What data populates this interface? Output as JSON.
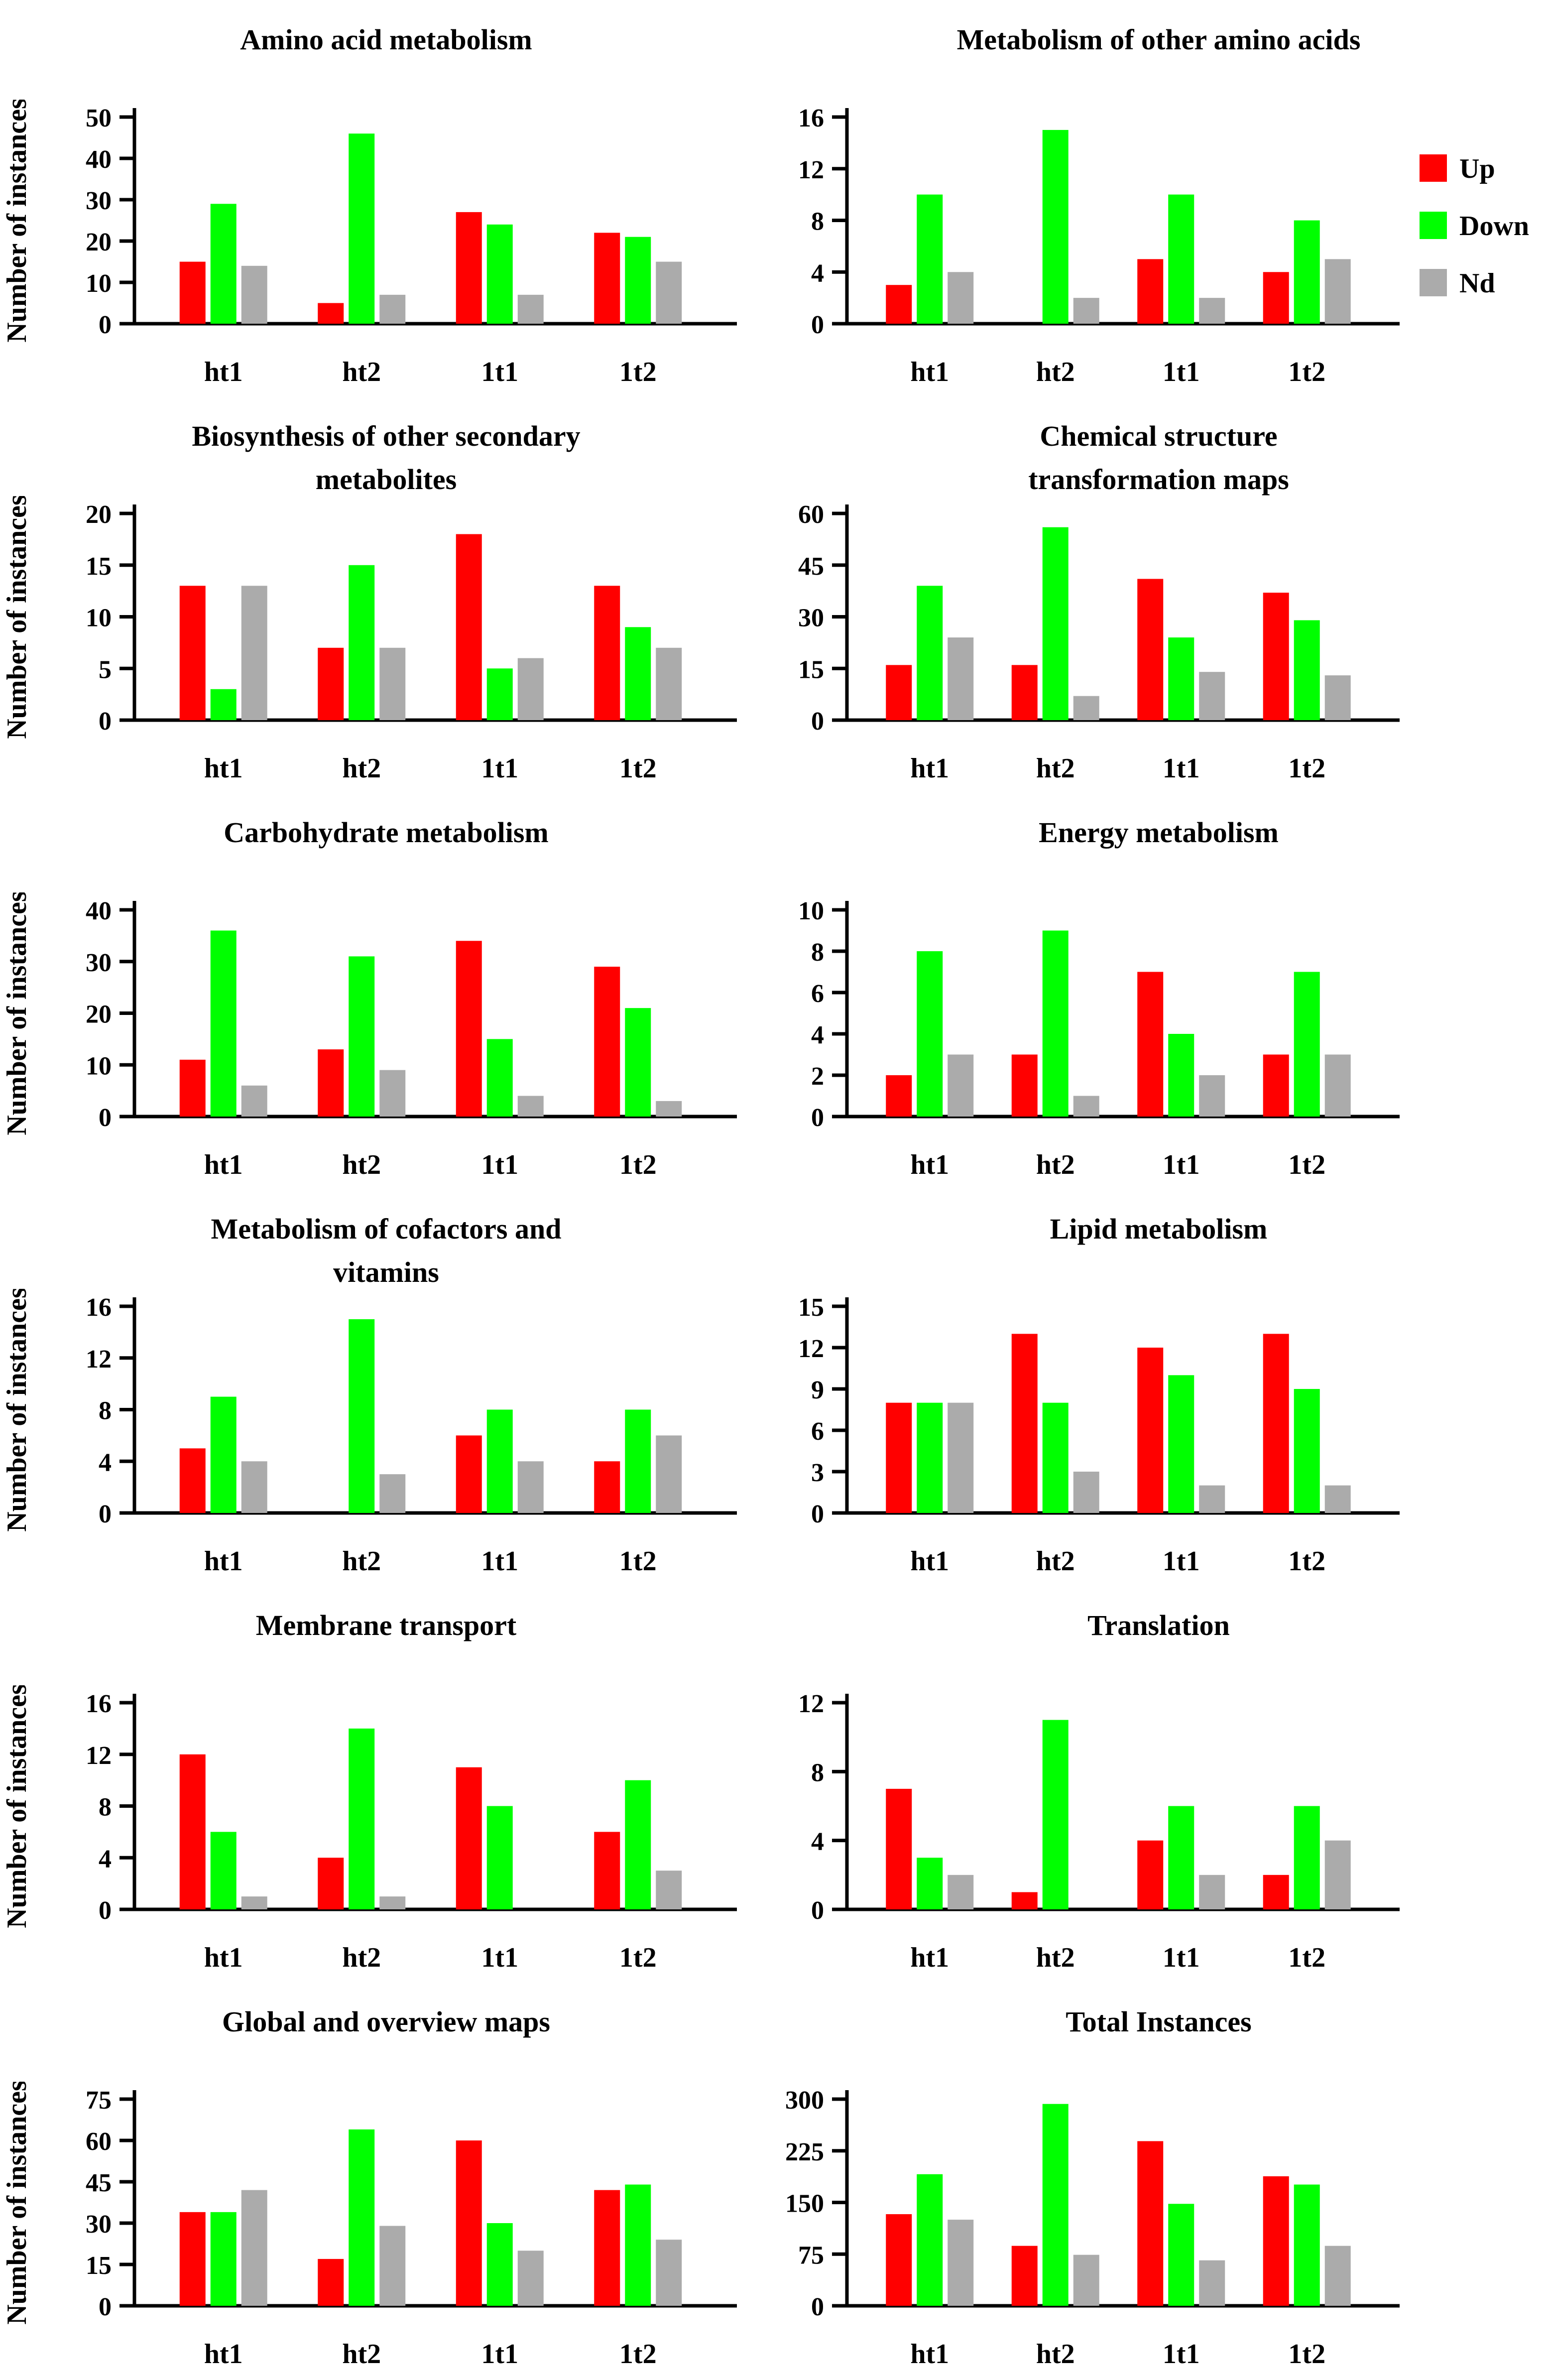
{
  "figure": {
    "ylabel": "Number of instances",
    "categories": [
      "ht1",
      "ht2",
      "1t1",
      "1t2"
    ],
    "colors": {
      "up": "#ff0000",
      "down": "#00ff00",
      "nd": "#ababab",
      "axis": "#000000",
      "background": "#ffffff"
    },
    "legend": {
      "items": [
        {
          "label": "Up",
          "key": "up"
        },
        {
          "label": "Down",
          "key": "down"
        },
        {
          "label": "Nd",
          "key": "nd"
        }
      ]
    }
  },
  "chart_data": [
    {
      "type": "bar",
      "title": "Amino acid metabolism",
      "title_lines": [
        "Amino acid metabolism"
      ],
      "ylabel": "Number of instances",
      "xlabel": "",
      "categories": [
        "ht1",
        "ht2",
        "1t1",
        "1t2"
      ],
      "yticks": [
        0,
        10,
        20,
        30,
        40,
        50
      ],
      "ylim": [
        0,
        50
      ],
      "grid": false,
      "show_legend": false,
      "series": [
        {
          "name": "Up",
          "color": "up",
          "values": [
            15,
            5,
            27,
            22
          ]
        },
        {
          "name": "Down",
          "color": "down",
          "values": [
            29,
            46,
            24,
            21
          ]
        },
        {
          "name": "Nd",
          "color": "nd",
          "values": [
            14,
            7,
            7,
            15
          ]
        }
      ]
    },
    {
      "type": "bar",
      "title": "Metabolism of other amino acids",
      "title_lines": [
        "Metabolism of other amino acids"
      ],
      "ylabel": "",
      "xlabel": "",
      "categories": [
        "ht1",
        "ht2",
        "1t1",
        "1t2"
      ],
      "yticks": [
        0,
        4,
        8,
        12,
        16
      ],
      "ylim": [
        0,
        16
      ],
      "grid": false,
      "show_legend": true,
      "legend_position": "right",
      "series": [
        {
          "name": "Up",
          "color": "up",
          "values": [
            3,
            0,
            5,
            4
          ]
        },
        {
          "name": "Down",
          "color": "down",
          "values": [
            10,
            15,
            10,
            8
          ]
        },
        {
          "name": "Nd",
          "color": "nd",
          "values": [
            4,
            2,
            2,
            5
          ]
        }
      ]
    },
    {
      "type": "bar",
      "title": "Biosynthesis of other secondary metabolites",
      "title_lines": [
        "Biosynthesis of other secondary",
        "metabolites"
      ],
      "ylabel": "Number of instances",
      "xlabel": "",
      "categories": [
        "ht1",
        "ht2",
        "1t1",
        "1t2"
      ],
      "yticks": [
        0,
        5,
        10,
        15,
        20
      ],
      "ylim": [
        0,
        20
      ],
      "grid": false,
      "show_legend": false,
      "series": [
        {
          "name": "Up",
          "color": "up",
          "values": [
            13,
            7,
            18,
            13
          ]
        },
        {
          "name": "Down",
          "color": "down",
          "values": [
            3,
            15,
            5,
            9
          ]
        },
        {
          "name": "Nd",
          "color": "nd",
          "values": [
            13,
            7,
            6,
            7
          ]
        }
      ]
    },
    {
      "type": "bar",
      "title": "Chemical structure transformation maps",
      "title_lines": [
        "Chemical structure",
        "transformation maps"
      ],
      "ylabel": "",
      "xlabel": "",
      "categories": [
        "ht1",
        "ht2",
        "1t1",
        "1t2"
      ],
      "yticks": [
        0,
        15,
        30,
        45,
        60
      ],
      "ylim": [
        0,
        60
      ],
      "grid": false,
      "show_legend": false,
      "series": [
        {
          "name": "Up",
          "color": "up",
          "values": [
            16,
            16,
            41,
            37
          ]
        },
        {
          "name": "Down",
          "color": "down",
          "values": [
            39,
            56,
            24,
            29
          ]
        },
        {
          "name": "Nd",
          "color": "nd",
          "values": [
            24,
            7,
            14,
            13
          ]
        }
      ]
    },
    {
      "type": "bar",
      "title": "Carbohydrate metabolism",
      "title_lines": [
        "Carbohydrate metabolism"
      ],
      "ylabel": "Number of instances",
      "xlabel": "",
      "categories": [
        "ht1",
        "ht2",
        "1t1",
        "1t2"
      ],
      "yticks": [
        0,
        10,
        20,
        30,
        40
      ],
      "ylim": [
        0,
        40
      ],
      "grid": false,
      "show_legend": false,
      "series": [
        {
          "name": "Up",
          "color": "up",
          "values": [
            11,
            13,
            34,
            29
          ]
        },
        {
          "name": "Down",
          "color": "down",
          "values": [
            36,
            31,
            15,
            21
          ]
        },
        {
          "name": "Nd",
          "color": "nd",
          "values": [
            6,
            9,
            4,
            3
          ]
        }
      ]
    },
    {
      "type": "bar",
      "title": "Energy metabolism",
      "title_lines": [
        "Energy metabolism"
      ],
      "ylabel": "",
      "xlabel": "",
      "categories": [
        "ht1",
        "ht2",
        "1t1",
        "1t2"
      ],
      "yticks": [
        0,
        2,
        4,
        6,
        8,
        10
      ],
      "ylim": [
        0,
        10
      ],
      "grid": false,
      "show_legend": false,
      "series": [
        {
          "name": "Up",
          "color": "up",
          "values": [
            2,
            3,
            7,
            3
          ]
        },
        {
          "name": "Down",
          "color": "down",
          "values": [
            8,
            9,
            4,
            7
          ]
        },
        {
          "name": "Nd",
          "color": "nd",
          "values": [
            3,
            1,
            2,
            3
          ]
        }
      ]
    },
    {
      "type": "bar",
      "title": "Metabolism of cofactors and vitamins",
      "title_lines": [
        "Metabolism of cofactors and",
        "vitamins"
      ],
      "ylabel": "Number of instances",
      "xlabel": "",
      "categories": [
        "ht1",
        "ht2",
        "1t1",
        "1t2"
      ],
      "yticks": [
        0,
        4,
        8,
        12,
        16
      ],
      "ylim": [
        0,
        16
      ],
      "grid": false,
      "show_legend": false,
      "series": [
        {
          "name": "Up",
          "color": "up",
          "values": [
            5,
            0,
            6,
            4
          ]
        },
        {
          "name": "Down",
          "color": "down",
          "values": [
            9,
            15,
            8,
            8
          ]
        },
        {
          "name": "Nd",
          "color": "nd",
          "values": [
            4,
            3,
            4,
            6
          ]
        }
      ]
    },
    {
      "type": "bar",
      "title": "Lipid metabolism",
      "title_lines": [
        "Lipid metabolism"
      ],
      "ylabel": "",
      "xlabel": "",
      "categories": [
        "ht1",
        "ht2",
        "1t1",
        "1t2"
      ],
      "yticks": [
        0,
        3,
        6,
        9,
        12,
        15
      ],
      "ylim": [
        0,
        15
      ],
      "grid": false,
      "show_legend": false,
      "series": [
        {
          "name": "Up",
          "color": "up",
          "values": [
            8,
            13,
            12,
            13
          ]
        },
        {
          "name": "Down",
          "color": "down",
          "values": [
            8,
            8,
            10,
            9
          ]
        },
        {
          "name": "Nd",
          "color": "nd",
          "values": [
            8,
            3,
            2,
            2
          ]
        }
      ]
    },
    {
      "type": "bar",
      "title": "Membrane transport",
      "title_lines": [
        "Membrane transport"
      ],
      "ylabel": "Number of instances",
      "xlabel": "",
      "categories": [
        "ht1",
        "ht2",
        "1t1",
        "1t2"
      ],
      "yticks": [
        0,
        4,
        8,
        12,
        16
      ],
      "ylim": [
        0,
        16
      ],
      "grid": false,
      "show_legend": false,
      "series": [
        {
          "name": "Up",
          "color": "up",
          "values": [
            12,
            4,
            11,
            6
          ]
        },
        {
          "name": "Down",
          "color": "down",
          "values": [
            6,
            14,
            8,
            10
          ]
        },
        {
          "name": "Nd",
          "color": "nd",
          "values": [
            1,
            1,
            0,
            3
          ]
        }
      ]
    },
    {
      "type": "bar",
      "title": "Translation",
      "title_lines": [
        "Translation"
      ],
      "ylabel": "",
      "xlabel": "",
      "categories": [
        "ht1",
        "ht2",
        "1t1",
        "1t2"
      ],
      "yticks": [
        0,
        4,
        8,
        12
      ],
      "ylim": [
        0,
        12
      ],
      "grid": false,
      "show_legend": false,
      "series": [
        {
          "name": "Up",
          "color": "up",
          "values": [
            7,
            1,
            4,
            2
          ]
        },
        {
          "name": "Down",
          "color": "down",
          "values": [
            3,
            11,
            6,
            6
          ]
        },
        {
          "name": "Nd",
          "color": "nd",
          "values": [
            2,
            0,
            2,
            4
          ]
        }
      ]
    },
    {
      "type": "bar",
      "title": "Global and overview maps",
      "title_lines": [
        "Global and overview maps"
      ],
      "ylabel": "Number of instances",
      "xlabel": "",
      "categories": [
        "ht1",
        "ht2",
        "1t1",
        "1t2"
      ],
      "yticks": [
        0,
        15,
        30,
        45,
        60,
        75
      ],
      "ylim": [
        0,
        75
      ],
      "grid": false,
      "show_legend": false,
      "series": [
        {
          "name": "Up",
          "color": "up",
          "values": [
            34,
            17,
            60,
            42
          ]
        },
        {
          "name": "Down",
          "color": "down",
          "values": [
            34,
            64,
            30,
            44
          ]
        },
        {
          "name": "Nd",
          "color": "nd",
          "values": [
            42,
            29,
            20,
            24
          ]
        }
      ]
    },
    {
      "type": "bar",
      "title": "Total Instances",
      "title_lines": [
        "Total Instances"
      ],
      "ylabel": "",
      "xlabel": "",
      "categories": [
        "ht1",
        "ht2",
        "1t1",
        "1t2"
      ],
      "yticks": [
        0,
        75,
        150,
        225,
        300
      ],
      "ylim": [
        0,
        300
      ],
      "grid": false,
      "show_legend": false,
      "series": [
        {
          "name": "Up",
          "color": "up",
          "values": [
            133,
            87,
            239,
            188
          ]
        },
        {
          "name": "Down",
          "color": "down",
          "values": [
            191,
            293,
            148,
            176
          ]
        },
        {
          "name": "Nd",
          "color": "nd",
          "values": [
            125,
            74,
            66,
            87
          ]
        }
      ]
    }
  ]
}
